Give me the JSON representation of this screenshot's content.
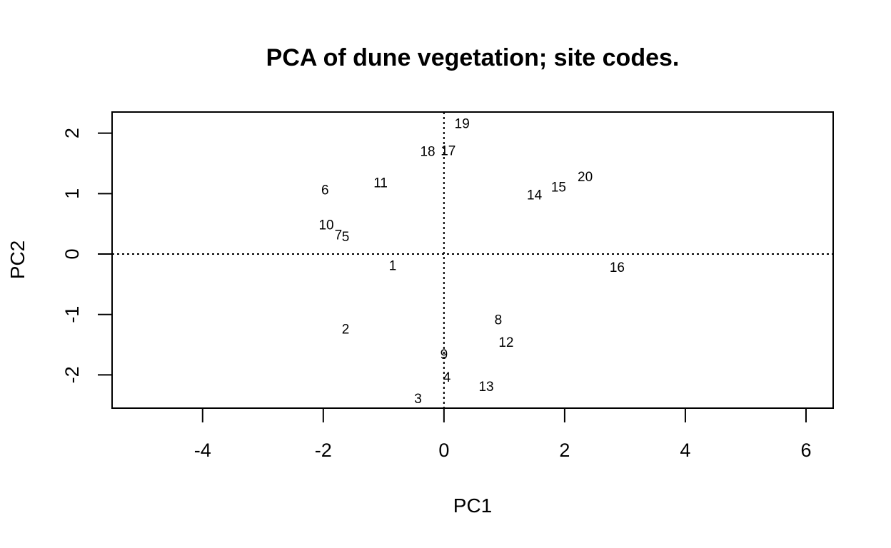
{
  "chart_data": {
    "type": "scatter",
    "title": "PCA of dune vegetation; site codes.",
    "xlabel": "PC1",
    "ylabel": "PC2",
    "xlim": [
      -5.5,
      6.45
    ],
    "ylim": [
      -2.55,
      2.35
    ],
    "xticks": [
      -4,
      -2,
      0,
      2,
      4,
      6
    ],
    "xtick_labels": [
      "-4",
      "-2",
      "0",
      "2",
      "4",
      "6"
    ],
    "yticks": [
      -2,
      -1,
      0,
      1,
      2
    ],
    "ytick_labels": [
      "-2",
      "-1",
      "0",
      "1",
      "2"
    ],
    "reference_lines": {
      "x": 0,
      "y": 0,
      "style": "dotted"
    },
    "grid": false,
    "points": [
      {
        "label": "1",
        "x": -0.85,
        "y": -0.2
      },
      {
        "label": "2",
        "x": -1.63,
        "y": -1.25
      },
      {
        "label": "3",
        "x": -0.43,
        "y": -2.4
      },
      {
        "label": "4",
        "x": 0.05,
        "y": -2.05
      },
      {
        "label": "5",
        "x": -1.63,
        "y": 0.28
      },
      {
        "label": "6",
        "x": -1.97,
        "y": 1.05
      },
      {
        "label": "7",
        "x": -1.75,
        "y": 0.31
      },
      {
        "label": "8",
        "x": 0.9,
        "y": -1.1
      },
      {
        "label": "9",
        "x": 0.0,
        "y": -1.67
      },
      {
        "label": "10",
        "x": -1.95,
        "y": 0.47
      },
      {
        "label": "11",
        "x": -1.05,
        "y": 1.17
      },
      {
        "label": "12",
        "x": 1.03,
        "y": -1.47
      },
      {
        "label": "13",
        "x": 0.7,
        "y": -2.2
      },
      {
        "label": "14",
        "x": 1.5,
        "y": 0.97
      },
      {
        "label": "15",
        "x": 1.9,
        "y": 1.1
      },
      {
        "label": "16",
        "x": 2.87,
        "y": -0.23
      },
      {
        "label": "17",
        "x": 0.07,
        "y": 1.7
      },
      {
        "label": "18",
        "x": -0.27,
        "y": 1.69
      },
      {
        "label": "19",
        "x": 0.3,
        "y": 2.15
      },
      {
        "label": "20",
        "x": 2.34,
        "y": 1.27
      }
    ]
  }
}
